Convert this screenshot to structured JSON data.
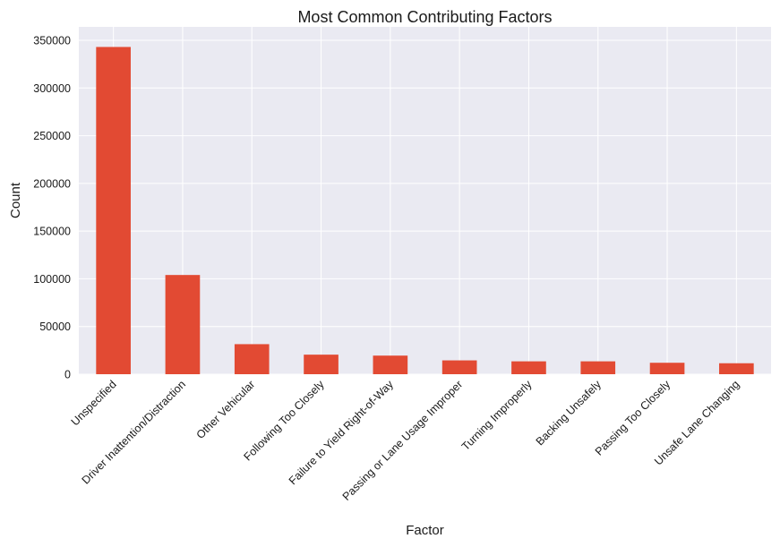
{
  "chart_data": {
    "type": "bar",
    "title": "Most Common Contributing Factors",
    "xlabel": "Factor",
    "ylabel": "Count",
    "ylim": [
      0,
      350000
    ],
    "yticks": [
      0,
      50000,
      100000,
      150000,
      200000,
      250000,
      300000,
      350000
    ],
    "grid": true,
    "categories": [
      "Unspecified",
      "Driver Inattention/Distraction",
      "Other Vehicular",
      "Following Too Closely",
      "Failure to Yield Right-of-Way",
      "Passing or Lane Usage Improper",
      "Turning Improperly",
      "Backing Unsafely",
      "Passing Too Closely",
      "Unsafe Lane Changing"
    ],
    "values": [
      343000,
      104000,
      31500,
      20500,
      19500,
      14500,
      13500,
      13500,
      12000,
      11500
    ],
    "colors": {
      "bar": "#e24a33",
      "background": "#eaeaf2",
      "grid": "#ffffff"
    }
  }
}
